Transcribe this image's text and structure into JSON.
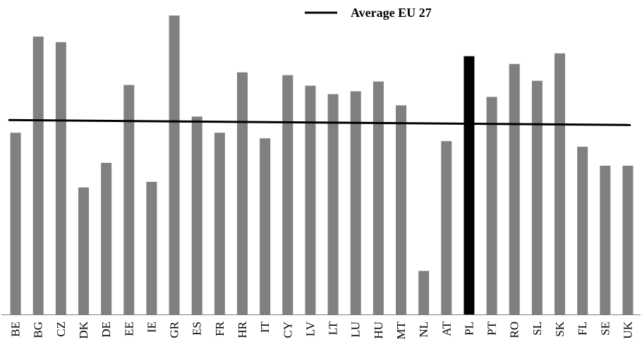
{
  "chart_data": {
    "type": "bar",
    "title": "",
    "xlabel": "",
    "ylabel": "",
    "categories": [
      "BE",
      "BG",
      "CZ",
      "DK",
      "DE",
      "EE",
      "IE",
      "GR",
      "ES",
      "FR",
      "HR",
      "IT",
      "CY",
      "LV",
      "LT",
      "LU",
      "HU",
      "MT",
      "NL",
      "AT",
      "PL",
      "PT",
      "RO",
      "SL",
      "SK",
      "FL",
      "SE",
      "UK"
    ],
    "values": [
      259,
      396,
      388,
      181,
      216,
      327,
      189,
      426,
      282,
      259,
      345,
      251,
      341,
      326,
      314,
      318,
      332,
      298,
      62,
      247,
      368,
      310,
      357,
      333,
      372,
      239,
      212,
      212
    ],
    "highlight_category": "PL",
    "ylim": [
      0,
      426
    ],
    "grid": false,
    "average_line": {
      "label": "Average EU 27",
      "start_value": 277,
      "end_value": 270
    },
    "legend": {
      "position": "top-right",
      "entries": [
        "Average EU 27"
      ]
    },
    "colors": {
      "bar": "#808080",
      "highlight_bar": "#000000",
      "average_line": "#000000",
      "axis": "#808080"
    }
  }
}
